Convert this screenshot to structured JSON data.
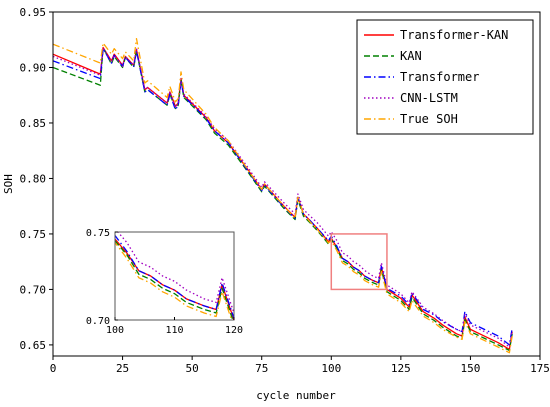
{
  "chart_data": {
    "type": "line",
    "title": "",
    "xlabel": "cycle number",
    "ylabel": "SOH",
    "xlim": [
      0,
      175
    ],
    "ylim": [
      0.64,
      0.95
    ],
    "xticks": [
      0,
      25,
      50,
      75,
      100,
      125,
      150,
      175
    ],
    "yticks": [
      0.65,
      0.7,
      0.75,
      0.8,
      0.85,
      0.9,
      0.95
    ],
    "xtick_labels": [
      "0",
      "25",
      "50",
      "75",
      "100",
      "125",
      "150",
      "175"
    ],
    "ytick_labels": [
      "0.65",
      "0.70",
      "0.75",
      "0.80",
      "0.85",
      "0.90",
      "0.95"
    ],
    "grid": false,
    "legend_position": "top-right",
    "x": [
      0,
      17,
      18,
      21,
      22,
      25,
      26,
      29,
      30,
      33,
      34,
      41,
      42,
      44,
      45,
      46,
      47,
      55,
      58,
      63,
      70,
      75,
      76,
      83,
      87,
      88,
      90,
      92,
      95,
      99,
      100,
      102,
      104,
      106,
      108,
      110,
      112,
      115,
      117,
      118,
      120,
      125,
      128,
      129,
      133,
      137,
      140,
      145,
      147,
      148,
      150,
      155,
      160,
      164,
      165
    ],
    "series": [
      {
        "name": "Transformer-KAN",
        "color": "#ff0000",
        "dash": "solid",
        "values": [
          0.912,
          0.894,
          0.918,
          0.906,
          0.912,
          0.902,
          0.91,
          0.902,
          0.916,
          0.88,
          0.882,
          0.868,
          0.878,
          0.865,
          0.868,
          0.89,
          0.875,
          0.855,
          0.843,
          0.832,
          0.808,
          0.79,
          0.795,
          0.775,
          0.765,
          0.783,
          0.768,
          0.763,
          0.755,
          0.743,
          0.746,
          0.738,
          0.728,
          0.725,
          0.72,
          0.717,
          0.712,
          0.708,
          0.706,
          0.72,
          0.7,
          0.692,
          0.684,
          0.695,
          0.68,
          0.674,
          0.668,
          0.66,
          0.658,
          0.675,
          0.664,
          0.658,
          0.652,
          0.646,
          0.662
        ]
      },
      {
        "name": "KAN",
        "color": "#008000",
        "dash": "dashed",
        "values": [
          0.9,
          0.884,
          0.918,
          0.903,
          0.91,
          0.9,
          0.909,
          0.9,
          0.915,
          0.878,
          0.88,
          0.866,
          0.876,
          0.863,
          0.866,
          0.889,
          0.873,
          0.853,
          0.841,
          0.83,
          0.806,
          0.788,
          0.793,
          0.773,
          0.763,
          0.781,
          0.766,
          0.761,
          0.753,
          0.741,
          0.745,
          0.737,
          0.726,
          0.723,
          0.718,
          0.715,
          0.71,
          0.706,
          0.704,
          0.718,
          0.698,
          0.69,
          0.682,
          0.693,
          0.678,
          0.672,
          0.666,
          0.658,
          0.656,
          0.673,
          0.662,
          0.656,
          0.65,
          0.645,
          0.66
        ]
      },
      {
        "name": "Transformer",
        "color": "#0000ff",
        "dash": "dashdot",
        "values": [
          0.906,
          0.89,
          0.917,
          0.904,
          0.911,
          0.901,
          0.909,
          0.901,
          0.915,
          0.878,
          0.88,
          0.866,
          0.876,
          0.862,
          0.866,
          0.888,
          0.874,
          0.854,
          0.843,
          0.832,
          0.807,
          0.789,
          0.794,
          0.774,
          0.764,
          0.783,
          0.768,
          0.763,
          0.755,
          0.744,
          0.748,
          0.739,
          0.728,
          0.725,
          0.72,
          0.717,
          0.712,
          0.708,
          0.706,
          0.721,
          0.701,
          0.694,
          0.686,
          0.697,
          0.682,
          0.677,
          0.671,
          0.664,
          0.662,
          0.68,
          0.67,
          0.664,
          0.658,
          0.65,
          0.665
        ]
      },
      {
        "name": "CNN-LSTM",
        "color": "#a000c0",
        "dash": "dotted",
        "values": [
          0.91,
          0.893,
          0.918,
          0.905,
          0.911,
          0.901,
          0.91,
          0.902,
          0.917,
          0.88,
          0.882,
          0.868,
          0.878,
          0.864,
          0.868,
          0.89,
          0.876,
          0.856,
          0.845,
          0.834,
          0.81,
          0.792,
          0.797,
          0.778,
          0.768,
          0.786,
          0.772,
          0.767,
          0.76,
          0.748,
          0.752,
          0.744,
          0.733,
          0.73,
          0.725,
          0.722,
          0.717,
          0.712,
          0.71,
          0.724,
          0.704,
          0.696,
          0.688,
          0.698,
          0.684,
          0.678,
          0.672,
          0.664,
          0.662,
          0.678,
          0.668,
          0.662,
          0.656,
          0.648,
          0.663
        ]
      },
      {
        "name": "True SOH",
        "color": "#ffa500",
        "dash": "dashdot",
        "values": [
          0.921,
          0.904,
          0.922,
          0.912,
          0.917,
          0.908,
          0.914,
          0.906,
          0.926,
          0.886,
          0.888,
          0.873,
          0.883,
          0.869,
          0.872,
          0.896,
          0.88,
          0.858,
          0.846,
          0.834,
          0.808,
          0.79,
          0.795,
          0.775,
          0.764,
          0.783,
          0.768,
          0.762,
          0.754,
          0.742,
          0.744,
          0.735,
          0.724,
          0.721,
          0.716,
          0.713,
          0.708,
          0.704,
          0.702,
          0.716,
          0.696,
          0.688,
          0.68,
          0.69,
          0.676,
          0.67,
          0.664,
          0.657,
          0.655,
          0.671,
          0.66,
          0.654,
          0.648,
          0.643,
          0.658
        ]
      }
    ],
    "zoom_box": {
      "xlim": [
        100,
        120
      ],
      "ylim": [
        0.7,
        0.75
      ],
      "color": "#f08080"
    },
    "inset": {
      "xlim": [
        100,
        120
      ],
      "ylim": [
        0.7,
        0.75
      ],
      "xticks": [
        100,
        110,
        120
      ],
      "yticks": [
        0.7,
        0.75
      ],
      "xtick_labels": [
        "100",
        "110",
        "120"
      ],
      "ytick_labels": [
        "0.70",
        "0.75"
      ]
    }
  }
}
